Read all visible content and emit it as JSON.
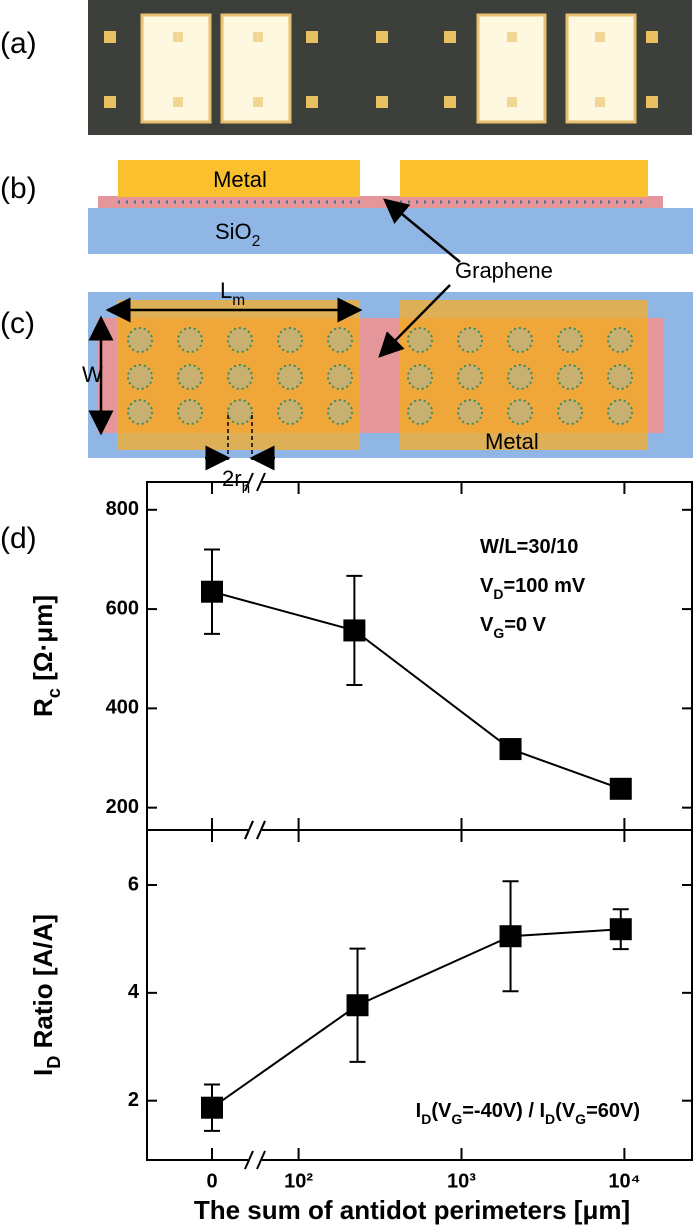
{
  "panel_labels": [
    "(a)",
    "(b)",
    "(c)",
    "(d)"
  ],
  "diagram": {
    "metal_b": "Metal",
    "sio2": [
      "SiO",
      {
        "sub": "2"
      }
    ],
    "graphene": "Graphene",
    "lm": [
      "L",
      {
        "sub": "m"
      }
    ],
    "w": "W",
    "rh": [
      "2r",
      {
        "sub": "h"
      }
    ],
    "metal_c": "Metal"
  },
  "chart_data": [
    {
      "type": "line",
      "ylabel": [
        "R",
        {
          "sub": "c"
        },
        " [Ω·μm]"
      ],
      "annotations": [
        [
          "W/L=30/10"
        ],
        [
          "V",
          {
            "sub": "D"
          },
          "=100 mV"
        ],
        [
          "V",
          {
            "sub": "G"
          },
          "=0 V"
        ]
      ],
      "x": [
        0,
        220,
        2000,
        9500
      ],
      "series": [
        {
          "color": "#000000",
          "values": [
            635,
            557,
            318,
            238
          ],
          "errors": [
            85,
            110,
            12,
            12
          ]
        }
      ],
      "ylim": [
        155,
        856
      ],
      "yticks": [
        200,
        400,
        600,
        800
      ]
    },
    {
      "type": "line",
      "ylabel": [
        "I",
        {
          "sub": "D"
        },
        " Ratio [A/A]"
      ],
      "xlabel": "The sum of antidot perimeters [μm]",
      "annotations": [
        [
          "I",
          {
            "sub": "D"
          },
          "(V",
          {
            "sub": "G"
          },
          "=-40V) / I",
          {
            "sub": "D"
          },
          "(V",
          {
            "sub": "G"
          },
          "=60V)"
        ]
      ],
      "x": [
        0,
        230,
        2000,
        9500
      ],
      "series": [
        {
          "color": "#000000",
          "values": [
            1.87,
            3.77,
            5.05,
            5.18
          ],
          "errors": [
            0.43,
            1.05,
            1.02,
            0.37
          ]
        }
      ],
      "ylim": [
        0.9,
        7.02
      ],
      "yticks": [
        2,
        4,
        6
      ],
      "xscale": "log",
      "xbreak": true,
      "xlim": [
        54,
        26000
      ],
      "xticks": [
        0,
        {
          "value": 100,
          "label": "10²"
        },
        {
          "value": 1000,
          "label": "10³"
        },
        {
          "value": 10000,
          "label": "10⁴"
        }
      ]
    }
  ]
}
